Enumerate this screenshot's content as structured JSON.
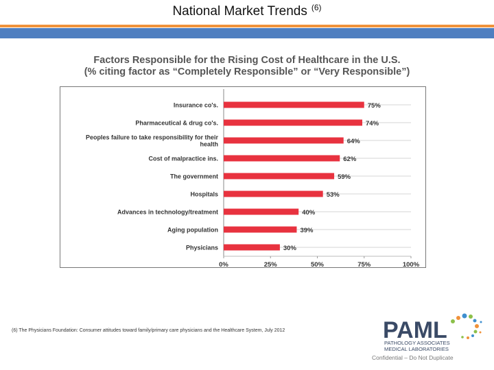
{
  "slide": {
    "title": "National Market Trends",
    "title_ref": "(6)",
    "footnote": "(6)  The Physicians Foundation: Consumer attitudes toward family/primary care physicians and the Healthcare System, July 2012",
    "confidential": "Confidential – Do Not Duplicate"
  },
  "logo": {
    "name": "PAML",
    "line1": "PATHOLOGY ASSOCIATES",
    "line2": "MEDICAL LABORATORIES",
    "colors": {
      "text": "#3a4a66",
      "dot_orange": "#f0923a",
      "dot_green": "#8cc04a",
      "dot_blue": "#3f8fcf"
    }
  },
  "colors": {
    "bar": "#e8323f",
    "label": "#333333",
    "band_orange": "#f0923a",
    "band_blue": "#4f7fc0"
  },
  "chart_data": {
    "type": "bar",
    "orientation": "horizontal",
    "title": "Factors Responsible for the Rising Cost of Healthcare in the U.S.",
    "subtitle": "(% citing factor as “Completely Responsible” or “Very Responsible”)",
    "categories": [
      [
        "Insurance co's."
      ],
      [
        "Pharmaceutical & drug co's."
      ],
      [
        "Peoples failure to take responsibility for their",
        "health"
      ],
      [
        "Cost of malpractice ins."
      ],
      [
        "The government"
      ],
      [
        "Hospitals"
      ],
      [
        "Advances in technology/treatment"
      ],
      [
        "Aging population"
      ],
      [
        "Physicians"
      ]
    ],
    "values": [
      75,
      74,
      64,
      62,
      59,
      53,
      40,
      39,
      30
    ],
    "value_labels": [
      "75%",
      "74%",
      "64%",
      "62%",
      "59%",
      "53%",
      "40%",
      "39%",
      "30%"
    ],
    "xlim": [
      0,
      100
    ],
    "xticks": [
      "0%",
      "25%",
      "50%",
      "75%",
      "100%"
    ],
    "grid": true,
    "legend": "none"
  }
}
